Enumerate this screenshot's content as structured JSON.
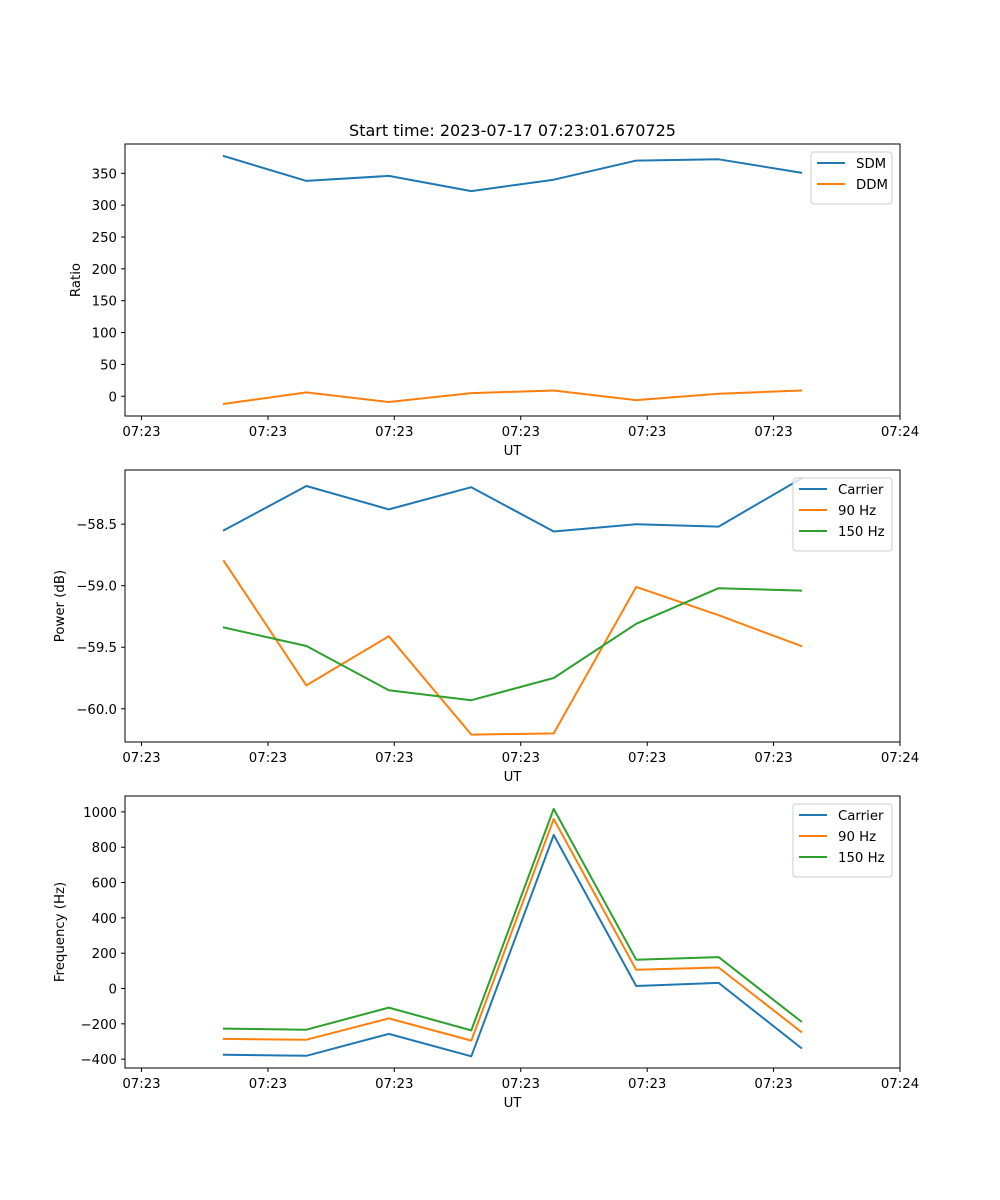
{
  "figure_title": "Start time: 2023-07-17 07:23:01.670725",
  "chart_data": [
    {
      "type": "line",
      "title": "Start time: 2023-07-17 07:23:01.670725",
      "xlabel": "UT",
      "ylabel": "Ratio",
      "x": [
        0.5,
        1,
        1.5,
        2,
        2.5,
        3,
        3.5,
        4
      ],
      "xlim": [
        -0.1,
        4.6
      ],
      "xticks": [
        0,
        0.767,
        1.533,
        2.3,
        3.067,
        3.833,
        4.6
      ],
      "xticklabels": [
        "07:23",
        "07:23",
        "07:23",
        "07:23",
        "07:23",
        "07:23",
        "07:24"
      ],
      "ylim": [
        -31,
        396
      ],
      "yticks": [
        0,
        50,
        100,
        150,
        200,
        250,
        300,
        350
      ],
      "yticklabels": [
        "0",
        "50",
        "100",
        "150",
        "200",
        "250",
        "300",
        "350"
      ],
      "legend_position": "top-right",
      "series": [
        {
          "name": "SDM",
          "color": "#1f77b4",
          "values": [
            377,
            338,
            346,
            322,
            340,
            370,
            372,
            351
          ]
        },
        {
          "name": "DDM",
          "color": "#ff7f0e",
          "values": [
            -12,
            6,
            -9,
            5,
            9,
            -6,
            4,
            9
          ]
        }
      ]
    },
    {
      "type": "line",
      "title": "",
      "xlabel": "UT",
      "ylabel": "Power (dB)",
      "x": [
        0.5,
        1,
        1.5,
        2,
        2.5,
        3,
        3.5,
        4
      ],
      "xlim": [
        -0.1,
        4.6
      ],
      "xticks": [
        0,
        0.767,
        1.533,
        2.3,
        3.067,
        3.833,
        4.6
      ],
      "xticklabels": [
        "07:23",
        "07:23",
        "07:23",
        "07:23",
        "07:23",
        "07:23",
        "07:24"
      ],
      "ylim": [
        -60.27,
        -58.06
      ],
      "yticks": [
        -60.0,
        -59.5,
        -59.0,
        -58.5
      ],
      "yticklabels": [
        "−60.0",
        "−59.5",
        "−59.0",
        "−58.5"
      ],
      "legend_position": "top-right",
      "series": [
        {
          "name": "Carrier",
          "color": "#1f77b4",
          "values": [
            -58.55,
            -58.19,
            -58.38,
            -58.2,
            -58.56,
            -58.5,
            -58.52,
            -58.13
          ]
        },
        {
          "name": "90 Hz",
          "color": "#ff7f0e",
          "values": [
            -58.8,
            -59.81,
            -59.41,
            -60.21,
            -60.2,
            -59.01,
            -59.24,
            -59.49
          ]
        },
        {
          "name": "150 Hz",
          "color": "#2ca02c",
          "values": [
            -59.34,
            -59.49,
            -59.85,
            -59.93,
            -59.75,
            -59.31,
            -59.02,
            -59.04
          ]
        }
      ]
    },
    {
      "type": "line",
      "title": "",
      "xlabel": "UT",
      "ylabel": "Frequency (Hz)",
      "x": [
        0.5,
        1,
        1.5,
        2,
        2.5,
        3,
        3.5,
        4
      ],
      "xlim": [
        -0.1,
        4.6
      ],
      "xticks": [
        0,
        0.767,
        1.533,
        2.3,
        3.067,
        3.833,
        4.6
      ],
      "xticklabels": [
        "07:23",
        "07:23",
        "07:23",
        "07:23",
        "07:23",
        "07:23",
        "07:24"
      ],
      "ylim": [
        -450,
        1090
      ],
      "yticks": [
        -400,
        -200,
        0,
        200,
        400,
        600,
        800,
        1000
      ],
      "yticklabels": [
        "−400",
        "−200",
        "0",
        "200",
        "400",
        "600",
        "800",
        "1000"
      ],
      "legend_position": "top-right",
      "series": [
        {
          "name": "Carrier",
          "color": "#1f77b4",
          "values": [
            -375,
            -381,
            -257,
            -384,
            869,
            14,
            32,
            -336
          ]
        },
        {
          "name": "90 Hz",
          "color": "#ff7f0e",
          "values": [
            -285,
            -290,
            -169,
            -295,
            960,
            106,
            119,
            -245
          ]
        },
        {
          "name": "150 Hz",
          "color": "#2ca02c",
          "values": [
            -227,
            -233,
            -108,
            -237,
            1017,
            163,
            178,
            -186
          ]
        }
      ]
    }
  ]
}
